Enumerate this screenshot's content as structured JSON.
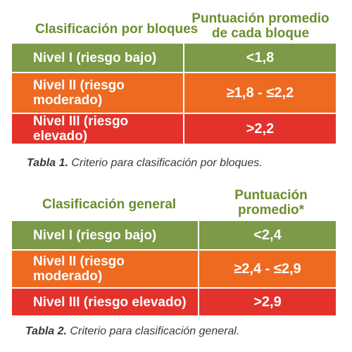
{
  "table1": {
    "header_left": "Clasificación por bloques",
    "header_right_line1": "Puntuación promedio",
    "header_right_line2": "de cada bloque",
    "rows": [
      {
        "label": "Nivel I (riesgo bajo)",
        "value": "<1,8",
        "color": "#7c9a47"
      },
      {
        "label_line1": "Nivel II (riesgo",
        "label_line2": "moderado)",
        "value": "≥1,8 - ≤2,2",
        "color": "#ef6a21"
      },
      {
        "label": "Nivel III (riesgo elevado)",
        "value": ">2,2",
        "color": "#e3322b"
      }
    ],
    "caption_label": "Tabla 1.",
    "caption_text": " Criterio para clasificación por bloques."
  },
  "table2": {
    "header_left": "Clasificación general",
    "header_right_line1": "Puntuación",
    "header_right_line2": "promedio*",
    "rows": [
      {
        "label": "Nivel I (riesgo bajo)",
        "value": "<2,4",
        "color": "#7c9a47"
      },
      {
        "label_line1": "Nivel II (riesgo",
        "label_line2": "moderado)",
        "value": "≥2,4 - ≤2,9",
        "color": "#ef6a21"
      },
      {
        "label": "Nivel III (riesgo elevado)",
        "value": ">2,9",
        "color": "#e3322b"
      }
    ],
    "caption_label": "Tabla 2.",
    "caption_text": " Criterio para clasificación general."
  }
}
